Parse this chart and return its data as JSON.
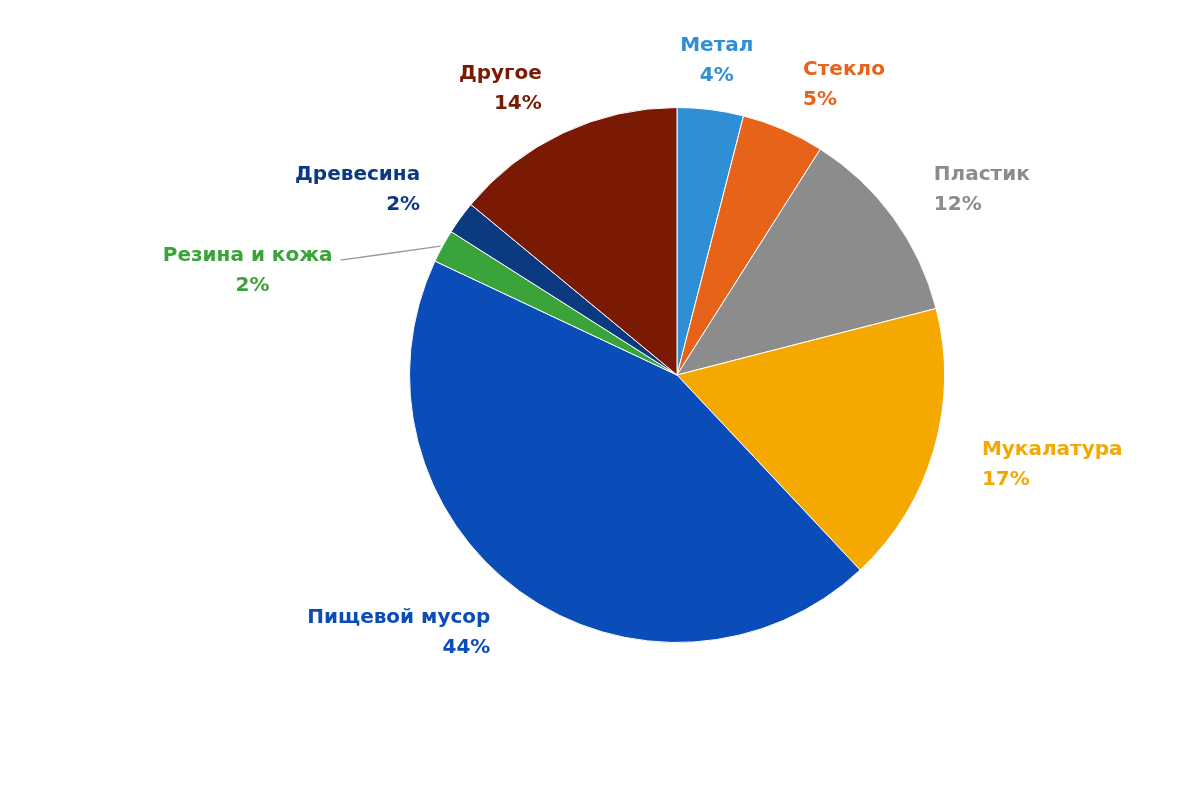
{
  "chart_data": {
    "type": "pie",
    "categories": [
      "Метал",
      "Стекло",
      "Пластик",
      "Мукалатура",
      "Пищевой мусор",
      "Резина и кожа",
      "Древесина",
      "Другое"
    ],
    "values": [
      4,
      5,
      12,
      17,
      44,
      2,
      2,
      14
    ],
    "colors": [
      "#2e8fd6",
      "#e8631a",
      "#8c8c8c",
      "#f5a800",
      "#0a4db8",
      "#3aa33a",
      "#0c3a80",
      "#7a1a04"
    ],
    "value_labels": [
      "4%",
      "5%",
      "12%",
      "17%",
      "44%",
      "2%",
      "2%",
      "14%"
    ],
    "legend": false
  }
}
